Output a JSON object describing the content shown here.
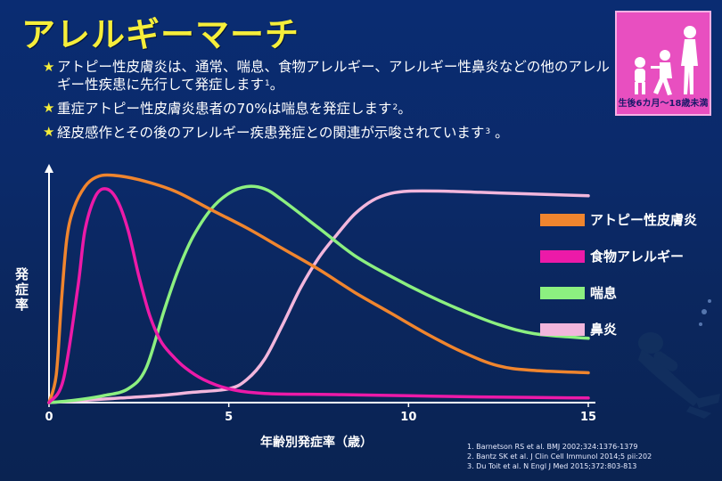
{
  "title": "アレルギーマーチ",
  "bullets": [
    {
      "text": "アトピー性皮膚炎は、通常、喘息、食物アレルギー、アレルギー性鼻炎などの他のアレルギー性疾患に先行して発症します",
      "ref": "1",
      "tail": "。"
    },
    {
      "text": "重症アトピー性皮膚炎患者の70%は喘息を発症します",
      "ref": "2",
      "tail": "。"
    },
    {
      "text": "経皮感作とその後のアレルギー疾患発症との関連が示唆されています",
      "ref": "3",
      "tail": " 。"
    }
  ],
  "badge": {
    "caption": "生後6カ月〜18歳未満",
    "bg_color": "#e84fc0"
  },
  "chart_data": {
    "type": "line",
    "xlabel": "年齢別発症率（歳）",
    "ylabel": "発症率",
    "xlim": [
      0,
      15
    ],
    "ylim": [
      0,
      100
    ],
    "xticks": [
      0,
      5,
      10,
      15
    ],
    "legend_position": "right",
    "series": [
      {
        "name": "アトピー性皮膚炎",
        "color": "#f0852e",
        "points": [
          [
            0,
            0
          ],
          [
            0.2,
            12
          ],
          [
            0.35,
            45
          ],
          [
            0.5,
            72
          ],
          [
            0.7,
            85
          ],
          [
            1.0,
            94
          ],
          [
            1.3,
            98
          ],
          [
            1.7,
            99
          ],
          [
            2.5,
            97
          ],
          [
            3.5,
            92
          ],
          [
            4.5,
            84
          ],
          [
            5.5,
            76
          ],
          [
            6.5,
            67
          ],
          [
            7.5,
            58
          ],
          [
            8.5,
            48
          ],
          [
            9.5,
            39
          ],
          [
            10.5,
            30
          ],
          [
            11.5,
            22
          ],
          [
            12.5,
            16
          ],
          [
            13.5,
            14
          ],
          [
            15,
            13
          ]
        ]
      },
      {
        "name": "食物アレルギー",
        "color": "#ec1aa8",
        "points": [
          [
            0,
            0
          ],
          [
            0.4,
            10
          ],
          [
            0.8,
            50
          ],
          [
            1.0,
            75
          ],
          [
            1.3,
            90
          ],
          [
            1.6,
            93
          ],
          [
            1.9,
            88
          ],
          [
            2.2,
            75
          ],
          [
            2.5,
            55
          ],
          [
            2.8,
            38
          ],
          [
            3.1,
            27
          ],
          [
            3.4,
            21
          ],
          [
            3.8,
            15
          ],
          [
            4.3,
            10
          ],
          [
            5.0,
            6
          ],
          [
            6,
            4
          ],
          [
            8,
            3.5
          ],
          [
            10,
            3
          ],
          [
            12,
            2.5
          ],
          [
            15,
            2
          ]
        ]
      },
      {
        "name": "喘息",
        "color": "#8cf080",
        "points": [
          [
            0,
            0
          ],
          [
            0.7,
            1
          ],
          [
            1.5,
            3
          ],
          [
            2.2,
            6
          ],
          [
            2.7,
            15
          ],
          [
            3.2,
            40
          ],
          [
            3.6,
            58
          ],
          [
            4,
            72
          ],
          [
            4.5,
            84
          ],
          [
            5,
            91
          ],
          [
            5.5,
            94
          ],
          [
            6,
            93
          ],
          [
            6.5,
            88
          ],
          [
            7.5,
            76
          ],
          [
            8.5,
            64
          ],
          [
            9.5,
            55
          ],
          [
            10.5,
            47
          ],
          [
            11.5,
            40
          ],
          [
            12.5,
            34
          ],
          [
            13.5,
            30
          ],
          [
            15,
            28
          ]
        ]
      },
      {
        "name": "鼻炎",
        "color": "#f2b6dc",
        "points": [
          [
            0,
            0
          ],
          [
            1,
            1
          ],
          [
            2,
            2
          ],
          [
            3,
            3
          ],
          [
            4,
            4.5
          ],
          [
            5,
            6
          ],
          [
            5.5,
            10
          ],
          [
            6,
            19
          ],
          [
            6.5,
            34
          ],
          [
            7,
            50
          ],
          [
            7.5,
            63
          ],
          [
            8,
            73
          ],
          [
            8.5,
            82
          ],
          [
            9,
            88
          ],
          [
            9.5,
            91
          ],
          [
            10,
            92
          ],
          [
            11,
            92
          ],
          [
            12,
            91.5
          ],
          [
            13,
            91
          ],
          [
            14,
            90.5
          ],
          [
            15,
            90
          ]
        ]
      }
    ]
  },
  "references": [
    "1. Barnetson RS et al. BMJ 2002;324:1376-1379",
    "2. Bantz SK et al. J Clin Cell Immunol 2014;5 pii:202",
    "3. Du Toit et al. N Engl J Med 2015;372:803-813"
  ]
}
